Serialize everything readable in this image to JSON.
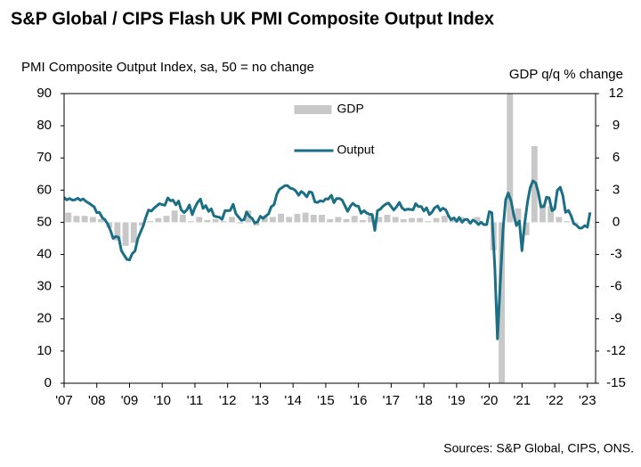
{
  "chart_data": {
    "type": "bar-line",
    "title": "S&P Global / CIPS Flash UK PMI Composite Output Index",
    "y_label": "PMI Composite  Output Index, sa, 50 = no change",
    "y2_label": "GDP q/q % change",
    "source": "Sources: S&P Global, CIPS, ONS.",
    "legend": "upper center",
    "xlim": [
      2007,
      2023.25
    ],
    "xticks": [
      {
        "value": 2007,
        "label": "'07"
      },
      {
        "value": 2008,
        "label": "'08"
      },
      {
        "value": 2009,
        "label": "'09"
      },
      {
        "value": 2010,
        "label": "'10"
      },
      {
        "value": 2011,
        "label": "'11"
      },
      {
        "value": 2012,
        "label": "'12"
      },
      {
        "value": 2013,
        "label": "'13"
      },
      {
        "value": 2014,
        "label": "'14"
      },
      {
        "value": 2015,
        "label": "'15"
      },
      {
        "value": 2016,
        "label": "'16"
      },
      {
        "value": 2017,
        "label": "'17"
      },
      {
        "value": 2018,
        "label": "'18"
      },
      {
        "value": 2019,
        "label": "'19"
      },
      {
        "value": 2020,
        "label": "'20"
      },
      {
        "value": 2021,
        "label": "'21"
      },
      {
        "value": 2022,
        "label": "'22"
      },
      {
        "value": 2023,
        "label": "'23"
      }
    ],
    "ylim": [
      0,
      90
    ],
    "yticks": [
      0,
      10,
      20,
      30,
      40,
      50,
      60,
      70,
      80,
      90
    ],
    "y2lim": [
      -15,
      12
    ],
    "y2ticks": [
      -15,
      -12,
      -9,
      -6,
      -3,
      0,
      3,
      6,
      9,
      12
    ],
    "series": [
      {
        "name": "GDP",
        "color": "#c8c8c8",
        "axis": "y2",
        "x": [
          2007.13,
          2007.38,
          2007.63,
          2007.88,
          2008.13,
          2008.38,
          2008.63,
          2008.88,
          2009.13,
          2009.38,
          2009.63,
          2009.88,
          2010.13,
          2010.38,
          2010.63,
          2010.88,
          2011.13,
          2011.38,
          2011.63,
          2011.88,
          2012.13,
          2012.38,
          2012.63,
          2012.88,
          2013.13,
          2013.38,
          2013.63,
          2013.88,
          2014.13,
          2014.38,
          2014.63,
          2014.88,
          2015.13,
          2015.38,
          2015.63,
          2015.88,
          2016.13,
          2016.38,
          2016.63,
          2016.88,
          2017.13,
          2017.38,
          2017.63,
          2017.88,
          2018.13,
          2018.38,
          2018.63,
          2018.88,
          2019.13,
          2019.38,
          2019.63,
          2019.88,
          2020.13,
          2020.38,
          2020.63,
          2020.88,
          2021.13,
          2021.38,
          2021.63,
          2021.88,
          2022.13,
          2022.38,
          2022.63,
          2022.88
        ],
        "values": [
          0.9,
          0.6,
          0.6,
          0.5,
          0.3,
          -0.5,
          -1.7,
          -2.2,
          -1.9,
          -0.3,
          0.1,
          0.4,
          0.6,
          1.1,
          0.7,
          0.1,
          0.5,
          0.2,
          0.3,
          0.1,
          0.5,
          -0.1,
          1.1,
          -0.3,
          0.6,
          0.5,
          0.8,
          0.5,
          0.8,
          0.9,
          0.7,
          0.7,
          0.3,
          0.5,
          0.3,
          0.6,
          0.2,
          0.6,
          0.5,
          0.7,
          0.5,
          0.3,
          0.4,
          0.4,
          0.1,
          0.4,
          0.6,
          0.2,
          0.5,
          -0.1,
          0.5,
          0.0,
          -2.6,
          -21.0,
          16.9,
          1.3,
          -1.2,
          7.1,
          1.7,
          1.5,
          0.5,
          0.1,
          -0.1,
          0.0
        ]
      },
      {
        "name": "Output",
        "color": "#1a6f85",
        "x": [
          2007.0,
          2007.08,
          2007.17,
          2007.25,
          2007.33,
          2007.42,
          2007.5,
          2007.58,
          2007.67,
          2007.75,
          2007.83,
          2007.92,
          2008.0,
          2008.08,
          2008.17,
          2008.25,
          2008.33,
          2008.42,
          2008.5,
          2008.58,
          2008.67,
          2008.75,
          2008.83,
          2008.92,
          2009.0,
          2009.08,
          2009.17,
          2009.25,
          2009.33,
          2009.42,
          2009.5,
          2009.58,
          2009.67,
          2009.75,
          2009.83,
          2009.92,
          2010.0,
          2010.08,
          2010.17,
          2010.25,
          2010.33,
          2010.42,
          2010.5,
          2010.58,
          2010.67,
          2010.75,
          2010.83,
          2010.92,
          2011.0,
          2011.08,
          2011.17,
          2011.25,
          2011.33,
          2011.42,
          2011.5,
          2011.58,
          2011.67,
          2011.75,
          2011.83,
          2011.92,
          2012.0,
          2012.08,
          2012.17,
          2012.25,
          2012.33,
          2012.42,
          2012.5,
          2012.58,
          2012.67,
          2012.75,
          2012.83,
          2012.92,
          2013.0,
          2013.08,
          2013.17,
          2013.25,
          2013.33,
          2013.42,
          2013.5,
          2013.58,
          2013.67,
          2013.75,
          2013.83,
          2013.92,
          2014.0,
          2014.08,
          2014.17,
          2014.25,
          2014.33,
          2014.42,
          2014.5,
          2014.58,
          2014.67,
          2014.75,
          2014.83,
          2014.92,
          2015.0,
          2015.08,
          2015.17,
          2015.25,
          2015.33,
          2015.42,
          2015.5,
          2015.58,
          2015.67,
          2015.75,
          2015.83,
          2015.92,
          2016.0,
          2016.08,
          2016.17,
          2016.25,
          2016.33,
          2016.42,
          2016.5,
          2016.58,
          2016.67,
          2016.75,
          2016.83,
          2016.92,
          2017.0,
          2017.08,
          2017.17,
          2017.25,
          2017.33,
          2017.42,
          2017.5,
          2017.58,
          2017.67,
          2017.75,
          2017.83,
          2017.92,
          2018.0,
          2018.08,
          2018.17,
          2018.25,
          2018.33,
          2018.42,
          2018.5,
          2018.58,
          2018.67,
          2018.75,
          2018.83,
          2018.92,
          2019.0,
          2019.08,
          2019.17,
          2019.25,
          2019.33,
          2019.42,
          2019.5,
          2019.58,
          2019.67,
          2019.75,
          2019.83,
          2019.92,
          2020.0,
          2020.08,
          2020.17,
          2020.25,
          2020.33,
          2020.42,
          2020.5,
          2020.58,
          2020.67,
          2020.75,
          2020.83,
          2020.92,
          2021.0,
          2021.08,
          2021.17,
          2021.25,
          2021.33,
          2021.42,
          2021.5,
          2021.58,
          2021.67,
          2021.75,
          2021.83,
          2021.92,
          2022.0,
          2022.08,
          2022.17,
          2022.25,
          2022.33,
          2022.42,
          2022.5,
          2022.58,
          2022.67,
          2022.75,
          2022.83,
          2022.92,
          2023.0,
          2023.08
        ],
        "values": [
          57.7,
          57.0,
          57.4,
          56.9,
          57.0,
          57.5,
          56.8,
          57.3,
          56.5,
          56.0,
          55.4,
          54.8,
          53.0,
          53.1,
          51.4,
          50.8,
          49.5,
          47.4,
          45.0,
          45.6,
          45.3,
          41.2,
          39.9,
          38.5,
          38.3,
          40.2,
          41.1,
          44.8,
          46.8,
          48.9,
          51.5,
          53.8,
          53.5,
          54.4,
          55.1,
          55.8,
          55.5,
          55.3,
          57.6,
          56.7,
          56.9,
          55.4,
          56.6,
          53.9,
          53.0,
          53.8,
          55.4,
          52.4,
          54.6,
          56.2,
          57.2,
          54.3,
          55.2,
          53.4,
          54.2,
          52.0,
          51.7,
          51.6,
          50.9,
          53.6,
          53.6,
          53.7,
          55.6,
          52.7,
          51.7,
          50.6,
          50.8,
          53.2,
          51.8,
          51.2,
          49.8,
          50.2,
          51.9,
          51.2,
          52.0,
          52.6,
          54.8,
          55.5,
          58.6,
          60.2,
          60.8,
          61.4,
          61.4,
          60.6,
          60.4,
          59.8,
          58.4,
          59.6,
          59.0,
          57.9,
          59.5,
          59.2,
          56.3,
          56.2,
          56.7,
          56.5,
          57.3,
          57.2,
          58.4,
          56.1,
          57.4,
          57.4,
          56.9,
          55.3,
          53.4,
          55.0,
          55.9,
          55.1,
          55.0,
          52.8,
          53.6,
          52.9,
          52.5,
          52.4,
          47.5,
          53.6,
          54.1,
          55.0,
          55.6,
          56.0,
          54.9,
          53.8,
          54.9,
          56.2,
          54.5,
          53.8,
          54.1,
          54.0,
          53.9,
          55.8,
          54.9,
          54.9,
          53.5,
          54.5,
          52.4,
          53.2,
          54.5,
          55.1,
          53.6,
          54.4,
          53.9,
          52.1,
          50.8,
          51.4,
          50.3,
          51.5,
          50.0,
          50.9,
          50.9,
          49.7,
          50.7,
          50.2,
          49.3,
          50.0,
          49.3,
          49.3,
          53.3,
          53.0,
          36.0,
          13.8,
          30.0,
          47.7,
          57.0,
          59.1,
          56.5,
          52.1,
          49.0,
          50.4,
          41.2,
          49.6,
          56.4,
          60.7,
          62.9,
          62.2,
          59.2,
          54.8,
          54.9,
          57.8,
          57.6,
          53.6,
          54.2,
          59.9,
          60.9,
          58.2,
          53.1,
          53.7,
          52.1,
          49.6,
          49.1,
          48.2,
          48.2,
          49.0,
          48.5,
          53.1
        ]
      }
    ]
  }
}
